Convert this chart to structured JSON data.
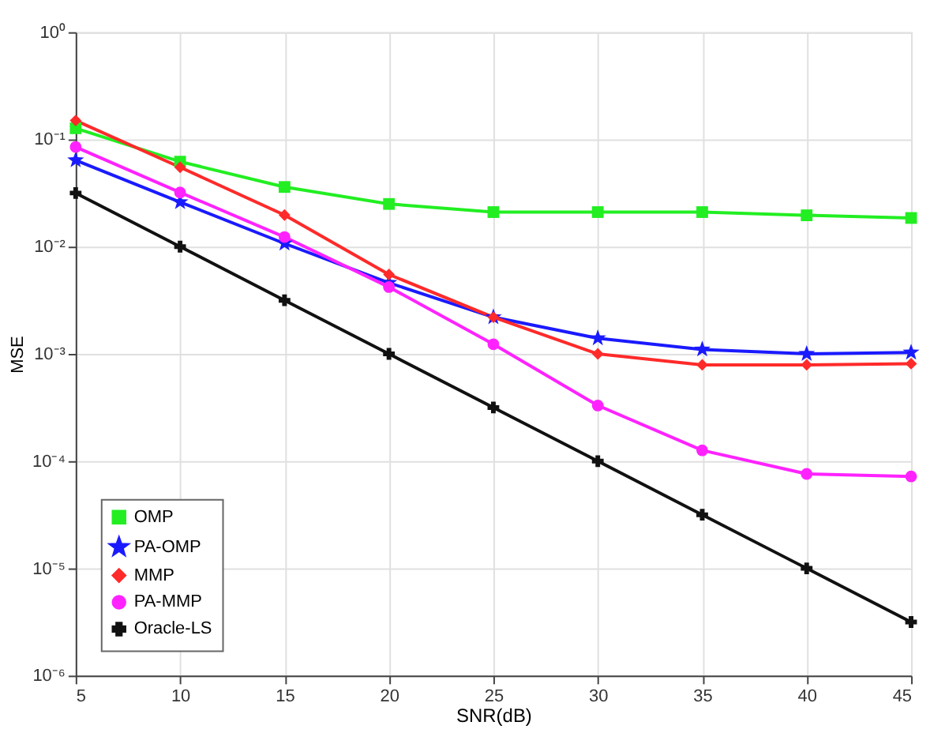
{
  "chart_data": {
    "type": "line",
    "xlabel": "SNR(dB)",
    "ylabel": "MSE",
    "x": [
      5,
      10,
      15,
      20,
      25,
      30,
      35,
      40,
      45
    ],
    "series": [
      {
        "name": "OMP",
        "color": "#22ee22",
        "marker": "square",
        "values": [
          0.127,
          0.062,
          0.036,
          0.025,
          0.021,
          0.021,
          0.021,
          0.0196,
          0.0185
        ]
      },
      {
        "name": "PA-OMP",
        "color": "#1a1aff",
        "marker": "star",
        "values": [
          0.064,
          0.026,
          0.0107,
          0.0046,
          0.0022,
          0.0014,
          0.0011,
          0.001,
          0.00103
        ]
      },
      {
        "name": "MMP",
        "color": "#ff2a2a",
        "marker": "diamond",
        "values": [
          0.15,
          0.055,
          0.0197,
          0.0055,
          0.0022,
          0.001,
          0.00079,
          0.00079,
          0.00081
        ]
      },
      {
        "name": "PA-MMP",
        "color": "#ff22ff",
        "marker": "circle",
        "values": [
          0.085,
          0.032,
          0.0123,
          0.0042,
          0.00123,
          0.00033,
          0.000126,
          7.6e-05,
          7.2e-05
        ]
      },
      {
        "name": "Oracle-LS",
        "color": "#111111",
        "marker": "cross",
        "values": [
          0.0316,
          0.01,
          0.00316,
          0.001,
          0.000316,
          0.0001,
          3.16e-05,
          1e-05,
          3.16e-06
        ]
      }
    ],
    "log": true,
    "grid": true,
    "legend": "bottom left",
    "line_style": "solid",
    "xlim": [
      5,
      45
    ],
    "xticks": [
      5,
      10,
      15,
      20,
      25,
      30,
      35,
      40,
      45
    ],
    "ylim": [
      1e-06,
      1
    ],
    "yticks": [
      {
        "value": 1e-06,
        "label": "10⁻⁶"
      },
      {
        "value": 1e-05,
        "label": "10⁻⁵"
      },
      {
        "value": 0.0001,
        "label": "10⁻⁴"
      },
      {
        "value": 0.001,
        "label": "10⁻³"
      },
      {
        "value": 0.01,
        "label": "10⁻²"
      },
      {
        "value": 0.1,
        "label": "10⁻¹"
      },
      {
        "value": 1,
        "label": "10⁰"
      }
    ]
  }
}
